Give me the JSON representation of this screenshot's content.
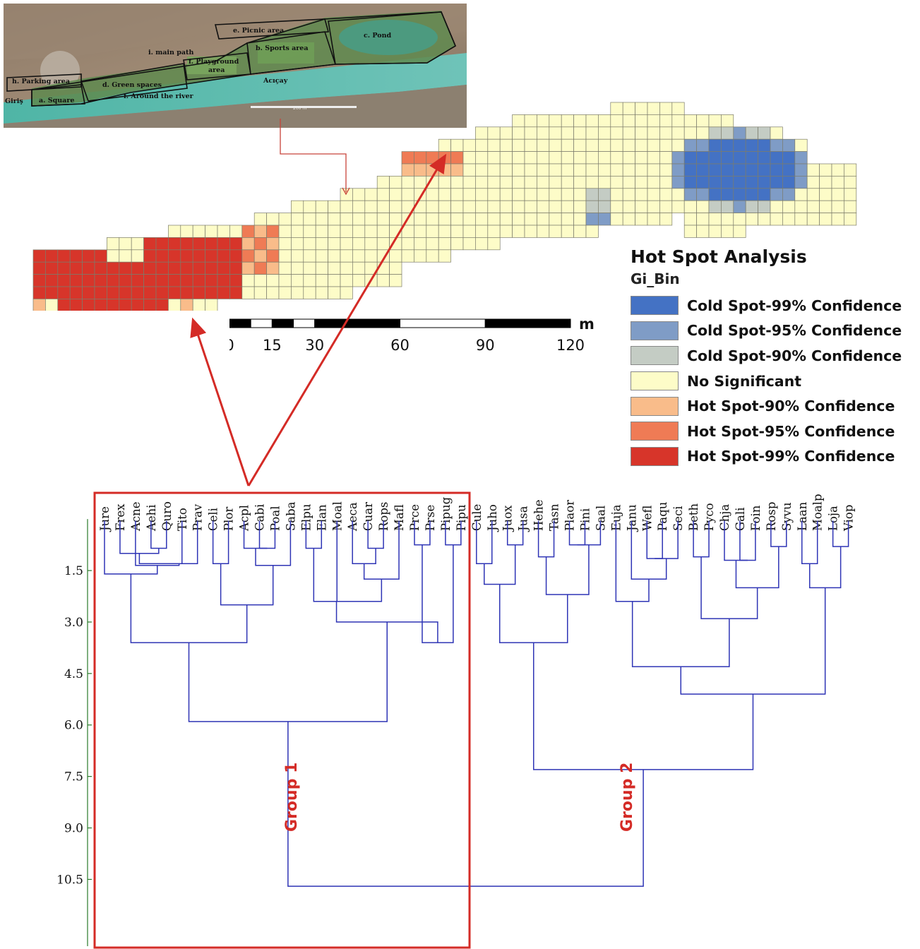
{
  "satellite": {
    "labels": [
      {
        "id": "picnic",
        "text": "e. Picnic area"
      },
      {
        "id": "pond",
        "text": "c. Pond"
      },
      {
        "id": "mainpath",
        "text": "i. main path"
      },
      {
        "id": "sports",
        "text": "b. Sports area"
      },
      {
        "id": "playground1",
        "text": "f. Playground"
      },
      {
        "id": "playground2",
        "text": "area"
      },
      {
        "id": "parking",
        "text": "h. Parking area"
      },
      {
        "id": "green",
        "text": "d. Green spaces"
      },
      {
        "id": "acicay",
        "text": "Acıçay"
      },
      {
        "id": "girls",
        "text": "Giriş"
      },
      {
        "id": "square",
        "text": "a. Square"
      },
      {
        "id": "river",
        "text": "f. Around the river"
      },
      {
        "id": "scalebar",
        "text": "200 m"
      }
    ]
  },
  "legend": {
    "title": "Hot Spot Analysis",
    "subtitle": "Gi_Bin",
    "items": [
      {
        "label": "Cold Spot-99% Confidence",
        "color": "#4472c4"
      },
      {
        "label": "Cold Spot-95% Confidence",
        "color": "#7f9cc6"
      },
      {
        "label": "Cold Spot-90% Confidence",
        "color": "#c4ccc4"
      },
      {
        "label": "No Significant",
        "color": "#fdfcc8"
      },
      {
        "label": "Hot Spot-90% Confidence",
        "color": "#f9bc8a"
      },
      {
        "label": "Hot Spot-95% Confidence",
        "color": "#ef7b55"
      },
      {
        "label": "Hot Spot-99% Confidence",
        "color": "#d7352a"
      }
    ]
  },
  "scale": {
    "unit": "m",
    "ticks": [
      "0",
      "15",
      "30",
      "60",
      "90",
      "120"
    ]
  },
  "dendrogram": {
    "y_axis_ticks": [
      "1.5",
      "3.0",
      "4.5",
      "6.0",
      "7.5",
      "9.0",
      "10.5"
    ],
    "group1_species": [
      "Jure",
      "Frex",
      "Acne",
      "Aehi",
      "Quro",
      "Tito",
      "Prav",
      "Celi",
      "Plor",
      "Acpl",
      "Cabi",
      "Poal",
      "Saba",
      "Elpu",
      "Elan",
      "Moal",
      "Aeca",
      "Cuar",
      "Rops",
      "Mafl",
      "Prce",
      "Prse",
      "Pipug",
      "Pipu"
    ],
    "group2_species": [
      "Cule",
      "Juho",
      "Juox",
      "Jusa",
      "Hehe",
      "Tasn",
      "Plaor",
      "Pini",
      "Saal",
      "Euja",
      "Janu",
      "Wefl",
      "Paqu",
      "Seci",
      "Beth",
      "Pyco",
      "Chja",
      "Gali",
      "Foin",
      "Rosp",
      "Syvu",
      "Laan",
      "Moalp",
      "Loja",
      "Viop"
    ],
    "group1_label": "Group 1",
    "group2_label": "Group 2"
  }
}
